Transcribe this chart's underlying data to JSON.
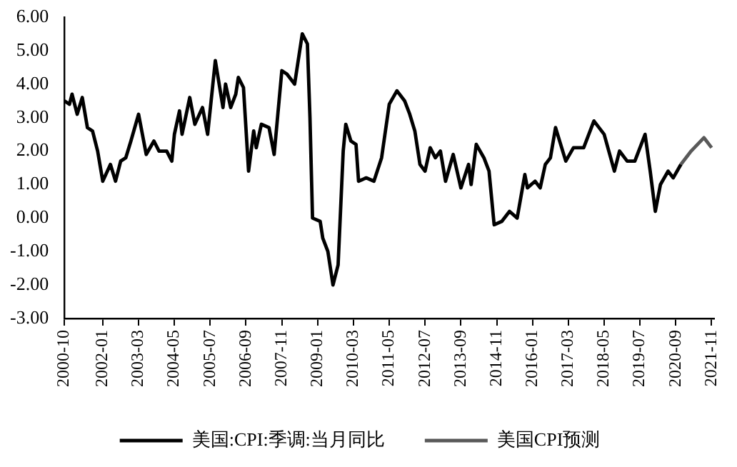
{
  "chart_data": {
    "type": "line",
    "xlim": [
      "2000-10",
      "2021-12"
    ],
    "xticks": [
      "2000-10",
      "2002-01",
      "2003-03",
      "2004-05",
      "2005-07",
      "2006-09",
      "2007-11",
      "2009-01",
      "2010-03",
      "2011-05",
      "2012-07",
      "2013-09",
      "2014-11",
      "2016-01",
      "2017-03",
      "2018-05",
      "2019-07",
      "2020-09",
      "2021-11"
    ],
    "ylim": [
      -3,
      6
    ],
    "yticks": [
      {
        "value": -3,
        "label": "-3.00"
      },
      {
        "value": -2,
        "label": "-2.00"
      },
      {
        "value": -1,
        "label": "-1.00"
      },
      {
        "value": 0,
        "label": "0.00"
      },
      {
        "value": 1,
        "label": "1.00"
      },
      {
        "value": 2,
        "label": "2.00"
      },
      {
        "value": 3,
        "label": "3.00"
      },
      {
        "value": 4,
        "label": "4.00"
      },
      {
        "value": 5,
        "label": "5.00"
      },
      {
        "value": 6,
        "label": "6.00"
      }
    ],
    "grid": false,
    "legend": "bottom",
    "series": [
      {
        "name": "美国:CPI:季调:当月同比",
        "color": "#000000",
        "x": [
          "2000-10",
          "2000-12",
          "2001-01",
          "2001-03",
          "2001-05",
          "2001-07",
          "2001-09",
          "2001-11",
          "2002-01",
          "2002-04",
          "2002-06",
          "2002-08",
          "2002-10",
          "2002-12",
          "2003-03",
          "2003-06",
          "2003-09",
          "2003-11",
          "2004-02",
          "2004-04",
          "2004-05",
          "2004-07",
          "2004-08",
          "2004-11",
          "2005-01",
          "2005-04",
          "2005-06",
          "2005-09",
          "2005-12",
          "2006-01",
          "2006-03",
          "2006-05",
          "2006-06",
          "2006-08",
          "2006-10",
          "2006-12",
          "2007-01",
          "2007-03",
          "2007-06",
          "2007-08",
          "2007-11",
          "2008-01",
          "2008-04",
          "2008-07",
          "2008-09",
          "2008-10",
          "2008-11",
          "2009-02",
          "2009-03",
          "2009-05",
          "2009-07",
          "2009-09",
          "2009-11",
          "2009-12",
          "2010-02",
          "2010-04",
          "2010-05",
          "2010-08",
          "2010-11",
          "2011-02",
          "2011-05",
          "2011-08",
          "2011-11",
          "2012-01",
          "2012-03",
          "2012-05",
          "2012-07",
          "2012-09",
          "2012-11",
          "2013-01",
          "2013-03",
          "2013-06",
          "2013-09",
          "2013-12",
          "2014-01",
          "2014-03",
          "2014-06",
          "2014-08",
          "2014-10",
          "2015-01",
          "2015-04",
          "2015-07",
          "2015-10",
          "2015-11",
          "2016-02",
          "2016-04",
          "2016-06",
          "2016-08",
          "2016-10",
          "2017-02",
          "2017-05",
          "2017-09",
          "2018-01",
          "2018-05",
          "2018-09",
          "2018-11",
          "2019-02",
          "2019-05",
          "2019-09",
          "2019-11",
          "2020-01",
          "2020-03",
          "2020-06",
          "2020-08",
          "2020-11"
        ],
        "values": [
          3.5,
          3.4,
          3.7,
          3.1,
          3.6,
          2.7,
          2.6,
          2.0,
          1.1,
          1.6,
          1.1,
          1.7,
          1.8,
          2.3,
          3.1,
          1.9,
          2.3,
          2.0,
          2.0,
          1.7,
          2.5,
          3.2,
          2.5,
          3.6,
          2.8,
          3.3,
          2.5,
          4.7,
          3.3,
          4.0,
          3.3,
          3.7,
          4.2,
          3.9,
          1.4,
          2.6,
          2.1,
          2.8,
          2.7,
          1.9,
          4.4,
          4.3,
          4.0,
          5.5,
          5.2,
          3.0,
          0.0,
          -0.1,
          -0.6,
          -1.0,
          -2.0,
          -1.4,
          2.0,
          2.8,
          2.3,
          2.2,
          1.1,
          1.2,
          1.1,
          1.8,
          3.4,
          3.8,
          3.5,
          3.1,
          2.6,
          1.6,
          1.4,
          2.1,
          1.8,
          2.0,
          1.1,
          1.9,
          0.9,
          1.6,
          1.0,
          2.2,
          1.8,
          1.4,
          -0.2,
          -0.1,
          0.2,
          0.0,
          1.3,
          0.9,
          1.1,
          0.9,
          1.6,
          1.8,
          2.7,
          1.7,
          2.1,
          2.1,
          2.9,
          2.5,
          1.4,
          2.0,
          1.7,
          1.7,
          2.5,
          1.4,
          0.2,
          1.0,
          1.4,
          1.2,
          1.6
        ]
      },
      {
        "name": "美国CPI预测",
        "color": "#595959",
        "x": [
          "2020-11",
          "2021-03",
          "2021-08",
          "2021-11"
        ],
        "values": [
          1.6,
          2.0,
          2.4,
          2.1
        ]
      }
    ]
  }
}
